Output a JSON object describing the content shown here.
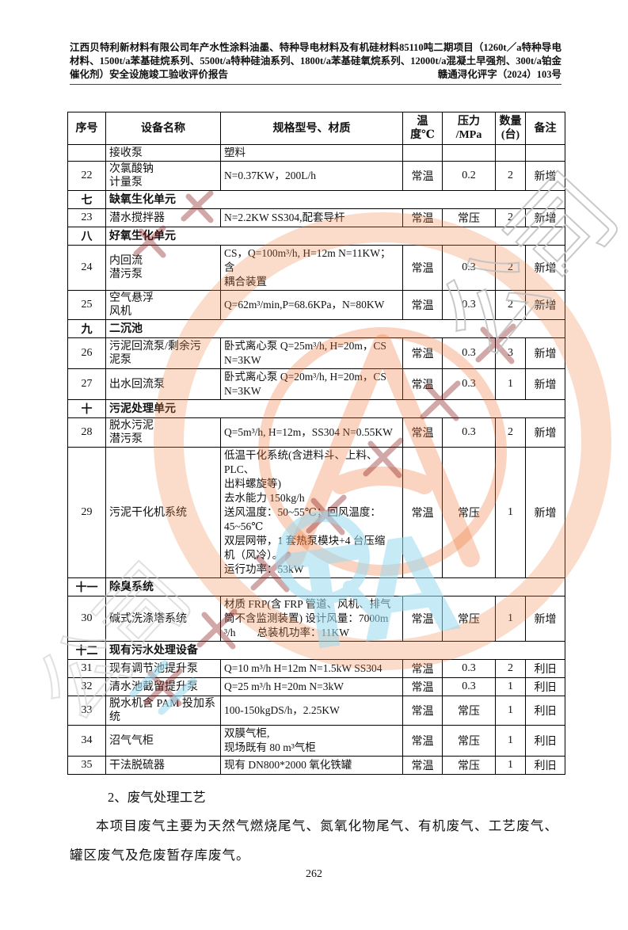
{
  "header": {
    "title_text": "江西贝特利新材料有限公司年产水性涂料油墨、特种导电材料及有机硅材料85110吨二期项目（1260t／a特种导电材料、1500t/a苯基硅烷系列、5500t/a特种硅油系列、1800t/a苯基硅氧烷系列、12000t/a混凝土早强剂、300t/a铂金催化剂）安全设施竣工验收评价报告",
    "doc_number": "赣通浔化评字（2024）103号"
  },
  "table": {
    "columns": [
      "序号",
      "设备名称",
      "规格型号、材质",
      "温\n度℃",
      "压力\n/MPa",
      "数量\n(台)",
      "备注"
    ],
    "rows": [
      {
        "type": "item",
        "no": "",
        "name": "接收泵",
        "spec": "塑料",
        "temp": "",
        "pressure": "",
        "qty": "",
        "note": ""
      },
      {
        "type": "item",
        "no": "22",
        "name": "次氯酸钠\n计量泵",
        "spec": "N=0.37KW，200L/h",
        "temp": "常温",
        "pressure": "0.2",
        "qty": "2",
        "note": "新增"
      },
      {
        "type": "section",
        "no": "七",
        "name": "缺氧生化单元"
      },
      {
        "type": "item",
        "no": "23",
        "name": "潜水搅拌器",
        "spec": "N=2.2KW SS304,配套导杆",
        "temp": "常温",
        "pressure": "常压",
        "qty": "2",
        "note": "新增"
      },
      {
        "type": "section",
        "no": "八",
        "name": "好氧生化单元"
      },
      {
        "type": "item",
        "no": "24",
        "name": "内回流\n潜污泵",
        "spec": "CS，Q=100m³/h,  H=12m N=11KW；含\n耦合装置",
        "temp": "常温",
        "pressure": "0.3",
        "qty": "2",
        "note": "新增"
      },
      {
        "type": "item",
        "no": "25",
        "name": "空气悬浮\n风机",
        "spec": "Q=62m³/min,P=68.6KPa，N=80KW",
        "temp": "常温",
        "pressure": "0.3",
        "qty": "2",
        "note": "新增"
      },
      {
        "type": "section",
        "no": "九",
        "name": "二沉池"
      },
      {
        "type": "item",
        "no": "26",
        "name": "污泥回流泵/剩余污\n泥泵",
        "spec": "卧式离心泵 Q=25m³/h,  H=20m，CS\nN=3KW",
        "temp": "常温",
        "pressure": "0.3",
        "qty": "3",
        "note": "新增"
      },
      {
        "type": "item",
        "no": "27",
        "name": "出水回流泵",
        "spec": "卧式离心泵 Q=20m³/h,  H=20m，CS\nN=3KW",
        "temp": "常温",
        "pressure": "0.3",
        "qty": "1",
        "note": "新增"
      },
      {
        "type": "section",
        "no": "十",
        "name": "污泥处理单元"
      },
      {
        "type": "item",
        "no": "28",
        "name": "脱水污泥\n潜污泵",
        "spec": "Q=5m³/h, H=12m，SS304 N=0.55KW",
        "temp": "常温",
        "pressure": "0.3",
        "qty": "2",
        "note": "新增"
      },
      {
        "type": "item",
        "no": "29",
        "name": "污泥干化机系统",
        "spec": "低温干化系统(含进料斗、上料、PLC、\n出料螺旋等)\n去水能力 150kg/h\n送风温度：50~55℃；回风温度：\n45~56℃\n双层网带，1 套热泵模块+4 台压缩\n机（风冷）。\n运行功率：53kW",
        "temp": "常温",
        "pressure": "常压",
        "qty": "1",
        "note": "新增"
      },
      {
        "type": "section",
        "no": "十一",
        "name": "除臭系统"
      },
      {
        "type": "item",
        "no": "30",
        "name": "碱式洗涤塔系统",
        "spec": "材质 FRP(含 FRP 管道、风机、排气\n筒不含监测装置) 设计风量：7000m\n³/h　　总装机功率：11KW",
        "temp": "常温",
        "pressure": "常压",
        "qty": "1",
        "note": "新增"
      },
      {
        "type": "section",
        "no": "十二",
        "name": "现有污水处理设备"
      },
      {
        "type": "item",
        "no": "31",
        "name": "现有调节池提升泵",
        "spec": "Q=10 m³/h H=12m N=1.5kW SS304",
        "temp": "常温",
        "pressure": "0.3",
        "qty": "2",
        "note": "利旧"
      },
      {
        "type": "item",
        "no": "32",
        "name": "清水池截留提升泵",
        "spec": "Q=25 m³/h H=20m N=3kW",
        "temp": "常温",
        "pressure": "0.3",
        "qty": "1",
        "note": "利旧"
      },
      {
        "type": "item",
        "no": "33",
        "name": "脱水机含 PAM 投加系\n统",
        "spec": "100-150kgDS/h，2.25KW",
        "temp": "常温",
        "pressure": "常压",
        "qty": "1",
        "note": "利旧"
      },
      {
        "type": "item",
        "no": "34",
        "name": "沼气气柜",
        "spec": "双膜气柜,\n现场既有 80 m³气柜",
        "temp": "常温",
        "pressure": "常压",
        "qty": "1",
        "note": "利旧"
      },
      {
        "type": "item",
        "no": "35",
        "name": "干法脱硫器",
        "spec": "现有 DN800*2000 氧化铁罐",
        "temp": "常温",
        "pressure": "常压",
        "qty": "1",
        "note": "利旧"
      }
    ]
  },
  "body": {
    "heading": "2、废气处理工艺",
    "paragraph": "本项目废气主要为天然气燃烧尾气、氮氧化物尾气、有机废气、工艺废气、罐区废气及危废暂存库废气。"
  },
  "footer": {
    "page_number": "262"
  },
  "watermark": {
    "stamp_color": "#F08040",
    "gray_text": "公司",
    "blue_mark": "TA",
    "blue_color": "#9ADBF0",
    "dark_red": "#8B1A1A"
  }
}
